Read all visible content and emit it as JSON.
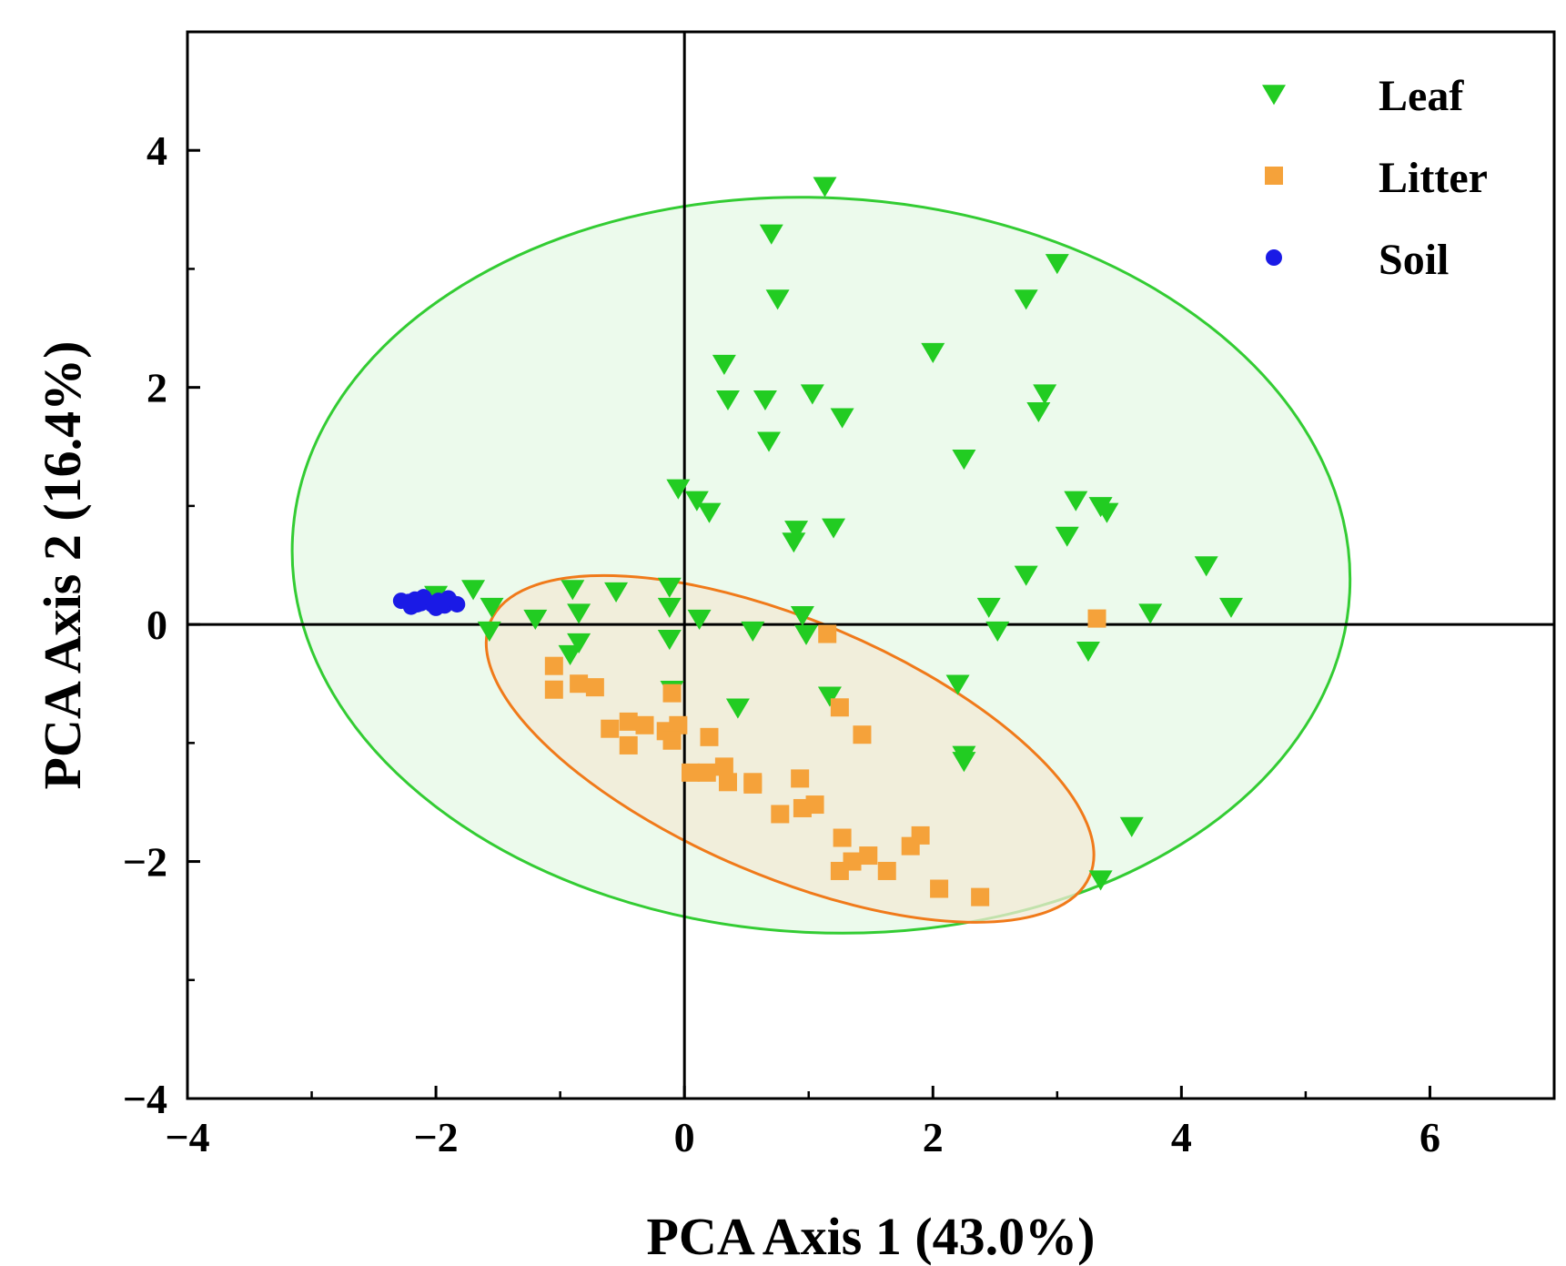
{
  "chart_data": {
    "type": "scatter",
    "title": "",
    "xlabel": "PCA Axis 1 (43.0%)",
    "ylabel": "PCA Axis 2 (16.4%)",
    "xlim": [
      -4,
      7
    ],
    "ylim": [
      -4,
      5
    ],
    "xticks": [
      -4,
      -2,
      0,
      2,
      4,
      6
    ],
    "yticks": [
      -4,
      -2,
      0,
      2,
      4
    ],
    "xtick_labels": [
      "−4",
      "−2",
      "0",
      "2",
      "4",
      "6"
    ],
    "ytick_labels": [
      "−4",
      "−2",
      "0",
      "2",
      "4"
    ],
    "reference_lines": {
      "x": 0,
      "y": 0
    },
    "legend_position": "top-right",
    "series": [
      {
        "name": "Leaf",
        "marker": "triangle-down",
        "color": "#22cc22",
        "ellipse": {
          "cx": 1.1,
          "cy": 0.5,
          "rx": 4.26,
          "ry": 3.1,
          "angle_deg": -3,
          "fill": "#e6f8e6",
          "stroke": "#33cc33"
        },
        "points": [
          [
            1.13,
            3.7
          ],
          [
            0.7,
            3.3
          ],
          [
            0.75,
            2.75
          ],
          [
            3.0,
            3.05
          ],
          [
            2.75,
            2.75
          ],
          [
            0.32,
            2.2
          ],
          [
            2.0,
            2.3
          ],
          [
            2.9,
            1.95
          ],
          [
            0.35,
            1.9
          ],
          [
            0.65,
            1.9
          ],
          [
            1.03,
            1.95
          ],
          [
            2.85,
            1.8
          ],
          [
            1.27,
            1.75
          ],
          [
            0.68,
            1.55
          ],
          [
            2.25,
            1.4
          ],
          [
            -0.05,
            1.15
          ],
          [
            0.1,
            1.05
          ],
          [
            0.2,
            0.95
          ],
          [
            3.15,
            1.05
          ],
          [
            3.35,
            1.0
          ],
          [
            3.4,
            0.95
          ],
          [
            0.9,
            0.8
          ],
          [
            0.88,
            0.7
          ],
          [
            1.2,
            0.82
          ],
          [
            3.08,
            0.75
          ],
          [
            4.2,
            0.5
          ],
          [
            2.75,
            0.42
          ],
          [
            -2.0,
            0.25
          ],
          [
            -1.7,
            0.3
          ],
          [
            -0.9,
            0.3
          ],
          [
            -0.55,
            0.28
          ],
          [
            -0.12,
            0.32
          ],
          [
            -1.55,
            0.15
          ],
          [
            -0.85,
            0.1
          ],
          [
            -0.12,
            0.15
          ],
          [
            -1.2,
            0.05
          ],
          [
            0.12,
            0.05
          ],
          [
            0.95,
            0.08
          ],
          [
            2.45,
            0.15
          ],
          [
            3.75,
            0.1
          ],
          [
            4.4,
            0.15
          ],
          [
            -1.57,
            -0.05
          ],
          [
            0.55,
            -0.05
          ],
          [
            0.98,
            -0.08
          ],
          [
            2.52,
            -0.05
          ],
          [
            -0.85,
            -0.15
          ],
          [
            -0.12,
            -0.12
          ],
          [
            -0.92,
            -0.25
          ],
          [
            3.25,
            -0.22
          ],
          [
            2.2,
            -0.5
          ],
          [
            -0.1,
            -0.55
          ],
          [
            1.17,
            -0.6
          ],
          [
            0.43,
            -0.7
          ],
          [
            2.25,
            -1.1
          ],
          [
            2.25,
            -1.15
          ],
          [
            3.6,
            -1.7
          ],
          [
            3.35,
            -2.15
          ]
        ]
      },
      {
        "name": "Litter",
        "marker": "square",
        "color": "#f5a23a",
        "ellipse": {
          "cx": 0.85,
          "cy": -1.05,
          "rx": 2.62,
          "ry": 1.08,
          "angle_deg": -23,
          "fill": "#f3ead6",
          "stroke": "#f07a1a"
        },
        "points": [
          [
            3.32,
            0.05
          ],
          [
            1.15,
            -0.08
          ],
          [
            -1.05,
            -0.35
          ],
          [
            -1.05,
            -0.55
          ],
          [
            -0.85,
            -0.5
          ],
          [
            -0.72,
            -0.53
          ],
          [
            -0.1,
            -0.58
          ],
          [
            1.25,
            -0.7
          ],
          [
            -0.6,
            -0.88
          ],
          [
            -0.45,
            -0.82
          ],
          [
            -0.32,
            -0.85
          ],
          [
            -0.15,
            -0.9
          ],
          [
            -0.05,
            -0.85
          ],
          [
            -0.1,
            -0.98
          ],
          [
            0.2,
            -0.95
          ],
          [
            1.43,
            -0.93
          ],
          [
            -0.45,
            -1.02
          ],
          [
            0.05,
            -1.25
          ],
          [
            0.18,
            -1.25
          ],
          [
            0.32,
            -1.2
          ],
          [
            0.35,
            -1.33
          ],
          [
            0.55,
            -1.33
          ],
          [
            0.55,
            -1.35
          ],
          [
            0.93,
            -1.3
          ],
          [
            0.77,
            -1.6
          ],
          [
            0.95,
            -1.55
          ],
          [
            1.05,
            -1.52
          ],
          [
            1.27,
            -1.8
          ],
          [
            1.9,
            -1.78
          ],
          [
            1.82,
            -1.87
          ],
          [
            1.35,
            -2.0
          ],
          [
            1.48,
            -1.95
          ],
          [
            1.25,
            -2.08
          ],
          [
            1.63,
            -2.08
          ],
          [
            2.05,
            -2.23
          ],
          [
            2.38,
            -2.3
          ]
        ]
      },
      {
        "name": "Soil",
        "marker": "circle",
        "color": "#1a1ae6",
        "points": [
          [
            -2.28,
            0.2
          ],
          [
            -2.22,
            0.19
          ],
          [
            -2.17,
            0.21
          ],
          [
            -2.12,
            0.18
          ],
          [
            -2.08,
            0.2
          ],
          [
            -2.03,
            0.17
          ],
          [
            -1.98,
            0.2
          ],
          [
            -1.93,
            0.16
          ],
          [
            -1.88,
            0.19
          ],
          [
            -1.83,
            0.17
          ],
          [
            -2.2,
            0.15
          ],
          [
            -2.1,
            0.23
          ],
          [
            -2.0,
            0.14
          ],
          [
            -1.9,
            0.22
          ],
          [
            -2.15,
            0.17
          ]
        ]
      }
    ]
  }
}
